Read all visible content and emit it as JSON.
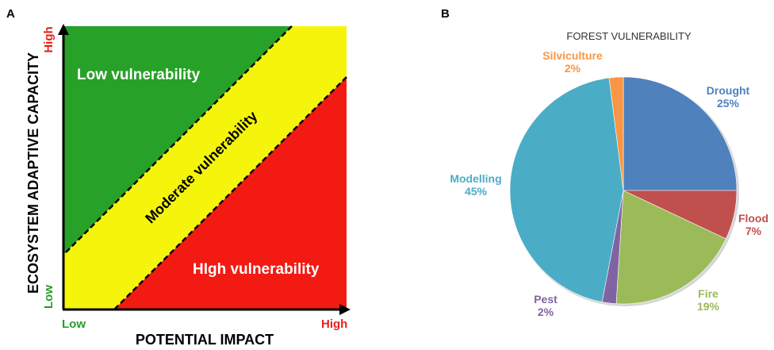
{
  "panel_a": {
    "label": "A",
    "zones": {
      "low": "Low vulnerability",
      "moderate": "Moderate vulnerability",
      "high": "HIgh vulnerability"
    },
    "y_axis": {
      "title": "ECOSYSTEM ADAPTIVE CAPACITY",
      "high": "High",
      "low": "Low"
    },
    "x_axis": {
      "title": "POTENTIAL IMPACT",
      "low": "Low",
      "high": "High"
    },
    "colors": {
      "low": "#27a127",
      "moderate": "#f5f50c",
      "high": "#f21a12",
      "high_text": "#e8201a",
      "low_text": "#2a9a2a"
    }
  },
  "panel_b": {
    "label": "B"
  },
  "chart_data": {
    "type": "pie",
    "title": "FOREST VULNERABILITY",
    "slices": [
      {
        "name": "Drought",
        "value": 25,
        "label": "25%",
        "color": "#4f81bd"
      },
      {
        "name": "Flood",
        "value": 7,
        "label": "7%",
        "color": "#c0504d"
      },
      {
        "name": "Fire",
        "value": 19,
        "label": "19%",
        "color": "#9bbb59"
      },
      {
        "name": "Pest",
        "value": 2,
        "label": "2%",
        "color": "#8064a2"
      },
      {
        "name": "Modelling",
        "value": 45,
        "label": "45%",
        "color": "#4bacc6"
      },
      {
        "name": "Silviculture",
        "value": 2,
        "label": "2%",
        "color": "#f79646"
      }
    ]
  }
}
